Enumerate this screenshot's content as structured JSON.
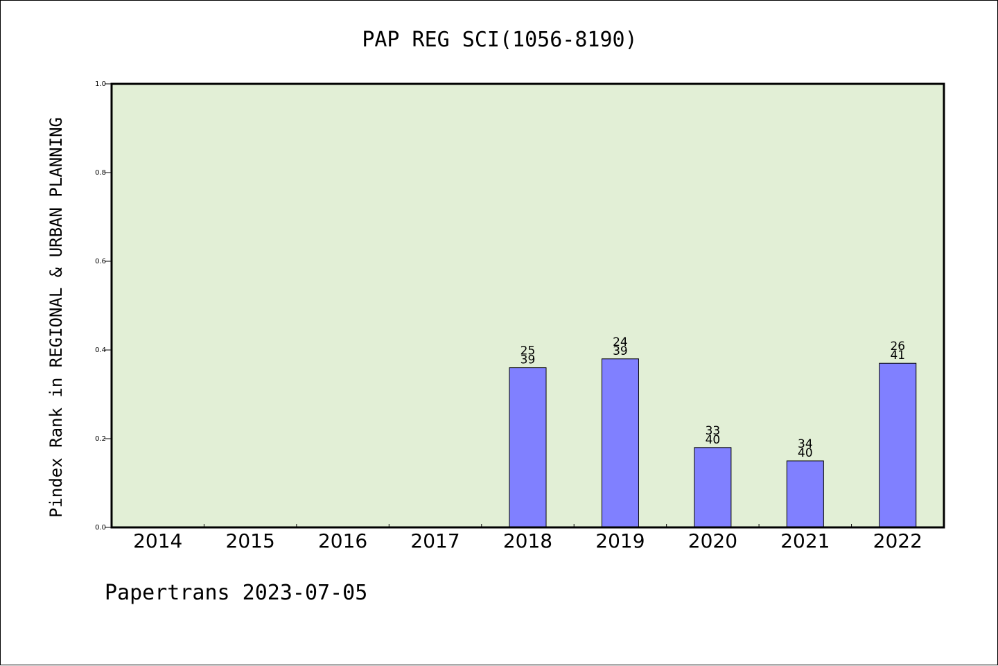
{
  "chart_data": {
    "type": "bar",
    "title": "PAP REG SCI(1056-8190)",
    "ylabel": "Pindex Rank in REGIONAL & URBAN PLANNING",
    "xlabel": "",
    "categories": [
      "2014",
      "2015",
      "2016",
      "2017",
      "2018",
      "2019",
      "2020",
      "2021",
      "2022"
    ],
    "values": [
      null,
      null,
      null,
      null,
      0.36,
      0.38,
      0.18,
      0.15,
      0.37
    ],
    "rank_labels": [
      null,
      null,
      null,
      null,
      {
        "rank": "25",
        "total": "39"
      },
      {
        "rank": "24",
        "total": "39"
      },
      {
        "rank": "33",
        "total": "40"
      },
      {
        "rank": "34",
        "total": "40"
      },
      {
        "rank": "26",
        "total": "41"
      }
    ],
    "yticks": [
      "0.0",
      "0.2",
      "0.4",
      "0.6",
      "0.8",
      "1.0"
    ],
    "ylim": [
      0,
      1.0
    ],
    "grid": false,
    "legend": "none"
  },
  "footer": {
    "text": "Papertrans 2023-07-05"
  },
  "colors": {
    "plot_background": "#e2efd6",
    "bar_fill": "#8080ff",
    "bar_stroke": "#000000",
    "axis": "#000000",
    "text": "#000000"
  }
}
